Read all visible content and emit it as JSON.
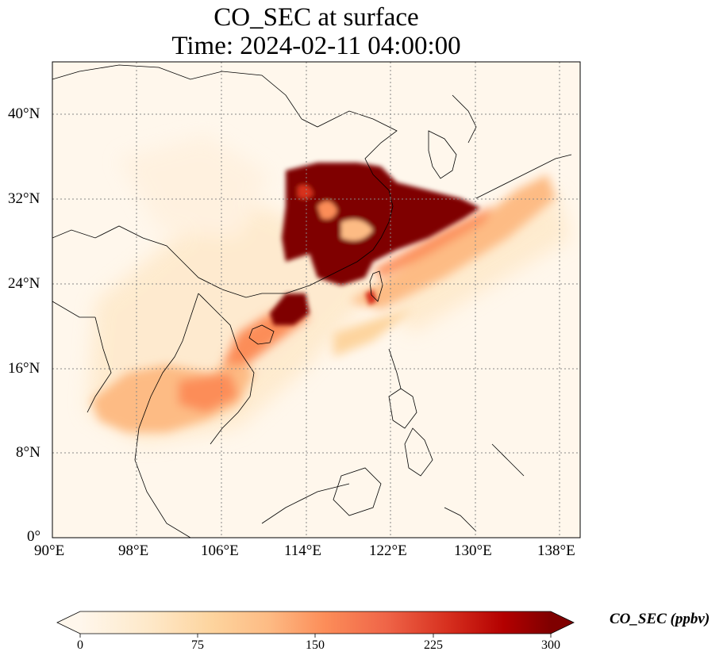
{
  "title": "CO_SEC at surface",
  "subtitle": "Time: 2024-02-11 04:00:00",
  "lon_ticks": [
    "90°E",
    "98°E",
    "106°E",
    "114°E",
    "122°E",
    "130°E",
    "138°E"
  ],
  "lat_ticks": [
    "40°N",
    "32°N",
    "24°N",
    "16°N",
    "8°N",
    "0°"
  ],
  "colorbar": {
    "label": "CO_SEC (ppbv)",
    "ticks": [
      "0",
      "75",
      "150",
      "225",
      "300"
    ],
    "range": [
      0,
      300
    ],
    "extend": "both",
    "colormap": "OrRd",
    "colors": [
      "#fff7ec",
      "#fee8c8",
      "#fdd49e",
      "#fdbb84",
      "#fc8d59",
      "#ef6548",
      "#d7301f",
      "#b30000",
      "#7f0000"
    ]
  },
  "map": {
    "extent_lon": [
      90,
      140
    ],
    "extent_lat": [
      0,
      45
    ],
    "gridlines": "dotted",
    "background_color": "#fff7ec",
    "plume_color_max": "#7f0000"
  }
}
